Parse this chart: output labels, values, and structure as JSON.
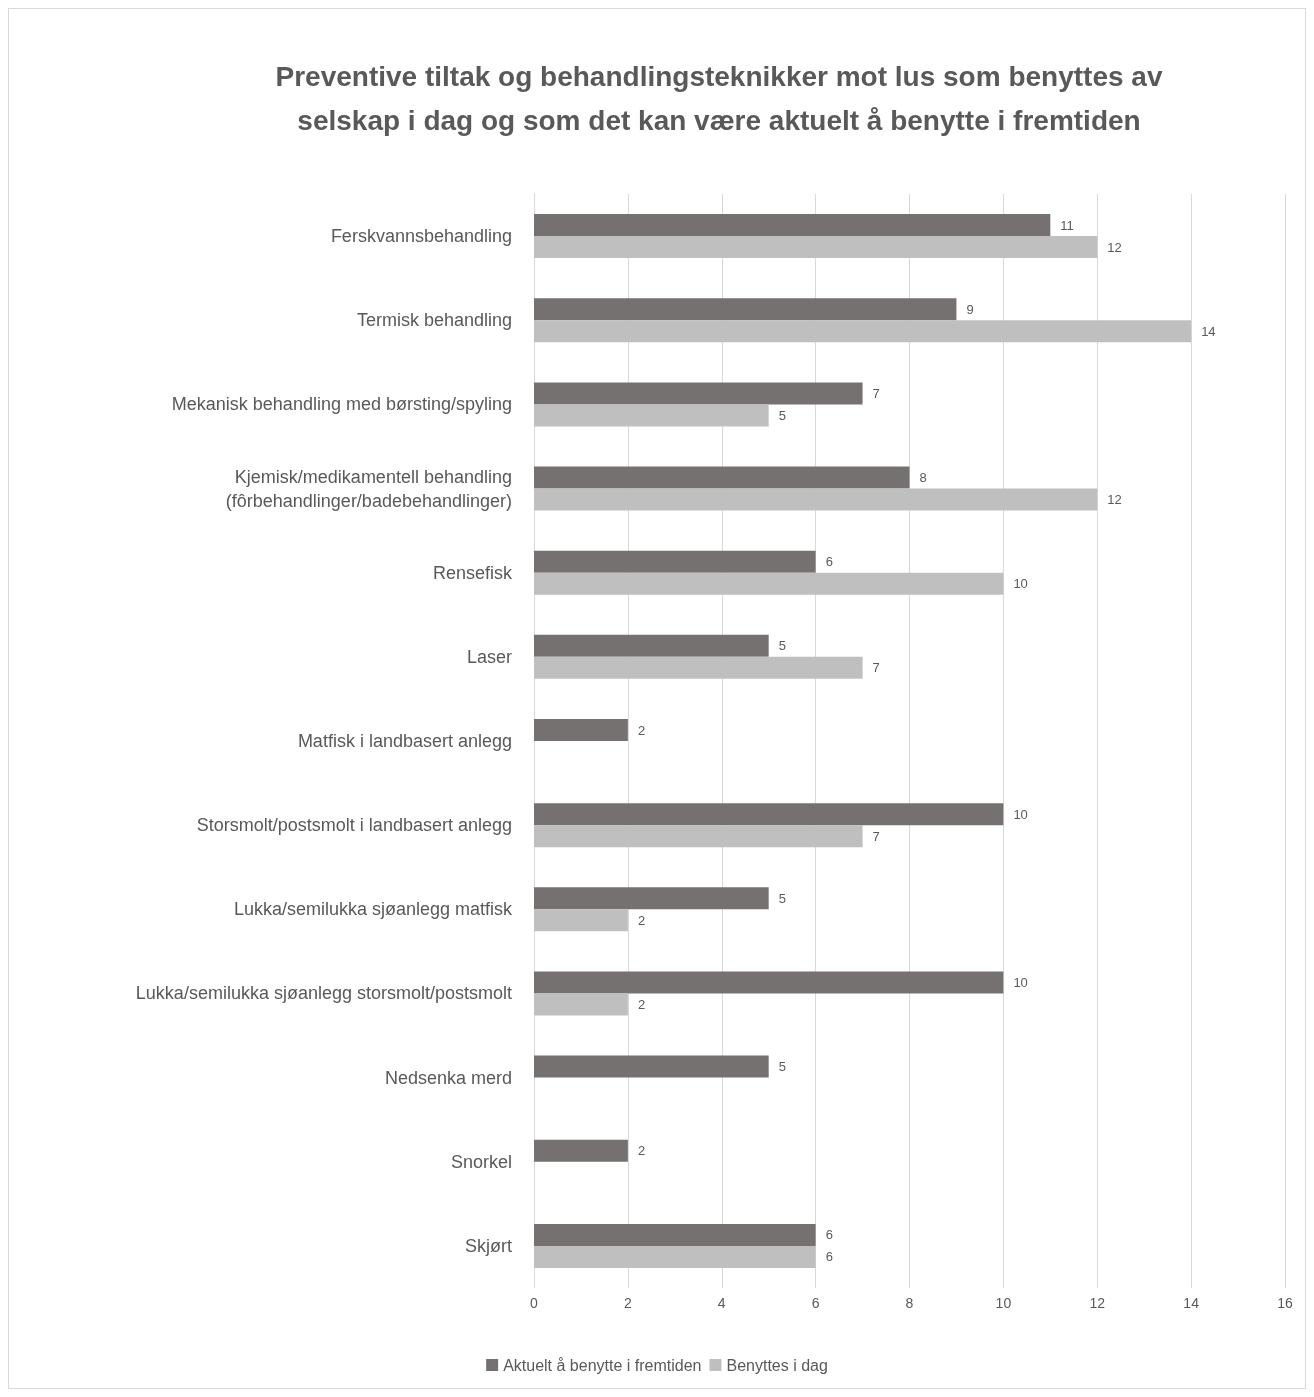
{
  "chart_data": {
    "type": "bar",
    "orientation": "horizontal",
    "title": "Preventive tiltak og behandlingsteknikker mot lus som benyttes av\nselskap i dag og som det kan være aktuelt å benytte i fremtiden",
    "categories": [
      "Ferskvannsbehandling",
      "Termisk behandling",
      "Mekanisk behandling med børsting/spyling",
      "Kjemisk/medikamentell behandling\n(fôrbehandlinger/badebehandlinger)",
      "Rensefisk",
      "Laser",
      "Matfisk i landbasert anlegg",
      "Storsmolt/postsmolt i landbasert anlegg",
      "Lukka/semilukka sjøanlegg matfisk",
      "Lukka/semilukka sjøanlegg storsmolt/postsmolt",
      "Nedsenka merd",
      "Snorkel",
      "Skjørt"
    ],
    "series": [
      {
        "name": "Aktuelt å benytte i fremtiden",
        "color": "#767171",
        "values": [
          11,
          9,
          7,
          8,
          6,
          5,
          2,
          10,
          5,
          10,
          5,
          2,
          6
        ]
      },
      {
        "name": "Benyttes i dag",
        "color": "#bfbfbf",
        "values": [
          12,
          14,
          5,
          12,
          10,
          7,
          null,
          7,
          2,
          2,
          null,
          null,
          6
        ]
      }
    ],
    "xlim": [
      0,
      16
    ],
    "xticks": [
      0,
      2,
      4,
      6,
      8,
      10,
      12,
      14,
      16
    ],
    "grid": "x",
    "legend": "bottom",
    "data_labels": true
  }
}
